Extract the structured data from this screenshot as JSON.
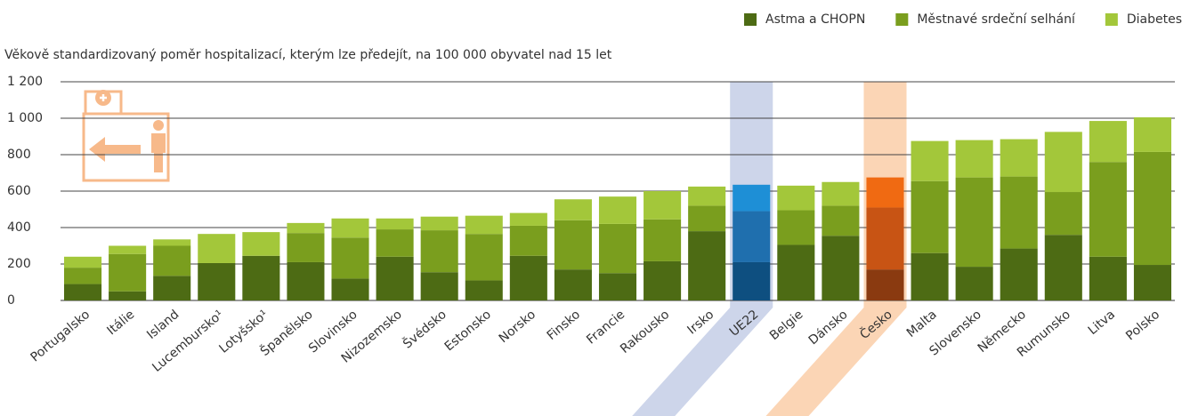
{
  "chart_data": {
    "type": "bar",
    "stacked": true,
    "subtitle": "Věkově standardizovaný poměr hospitalizací, kterým lze předejít, na 100 000 obyvatel nad 15 let",
    "categories": [
      "Portugalsko",
      "Itálie",
      "Island",
      "Lucembursko¹",
      "Lotyšsko¹",
      "Španělsko",
      "Slovinsko",
      "Nizozemsko",
      "Švédsko",
      "Estonsko",
      "Norsko",
      "Finsko",
      "Francie",
      "Rakousko",
      "Irsko",
      "UE22",
      "Belgie",
      "Dánsko",
      "Česko",
      "Malta",
      "Slovensko",
      "Německo",
      "Rumunsko",
      "Litva",
      "Polsko"
    ],
    "series": [
      {
        "name": "Astma a CHOPN",
        "color": "#4d6b14",
        "values": [
          90,
          50,
          135,
          205,
          245,
          210,
          120,
          240,
          155,
          110,
          245,
          170,
          150,
          215,
          380,
          210,
          305,
          355,
          170,
          260,
          185,
          285,
          360,
          240,
          195
        ]
      },
      {
        "name": "Městnavé srdeční selhání",
        "color": "#7a9e1e",
        "values": [
          90,
          205,
          165,
          null,
          null,
          160,
          225,
          150,
          230,
          255,
          165,
          270,
          270,
          230,
          140,
          280,
          190,
          165,
          340,
          395,
          490,
          395,
          235,
          520,
          620
        ]
      },
      {
        "name": "Diabetes",
        "color": "#a3c73a",
        "values": [
          60,
          45,
          35,
          160,
          130,
          55,
          105,
          60,
          75,
          100,
          70,
          115,
          150,
          155,
          105,
          145,
          135,
          130,
          165,
          220,
          205,
          205,
          330,
          225,
          190
        ]
      }
    ],
    "highlights": [
      {
        "index": 15,
        "band_color": "#cdd5ea",
        "colors": [
          "#0e4f80",
          "#1f6fae",
          "#1e8fd6"
        ]
      },
      {
        "index": 18,
        "band_color": "#fbd5b5",
        "colors": [
          "#8a3a10",
          "#c85414",
          "#f06a12"
        ]
      }
    ],
    "ylim": [
      0,
      1200
    ],
    "yticks": [
      0,
      200,
      400,
      600,
      800,
      {
        "value": 1000,
        "label": "1 000"
      },
      {
        "value": 1200,
        "label": "1 200"
      }
    ],
    "grid": true,
    "legend": "top-right"
  }
}
